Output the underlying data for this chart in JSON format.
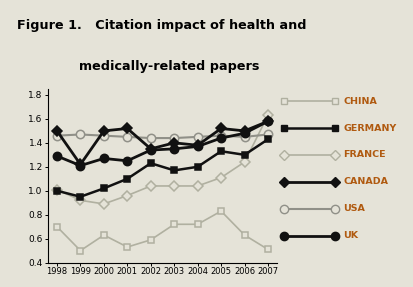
{
  "years": [
    1998,
    1999,
    2000,
    2001,
    2002,
    2003,
    2004,
    2005,
    2006,
    2007
  ],
  "title_line1": "Figure 1.   Citation impact of health and",
  "title_line2": "medically-related papers",
  "title_bg_color": "#7fb86a",
  "plot_bg_color": "#e5e3d8",
  "legend_text_color": "#b05a10",
  "series": {
    "CHINA": {
      "values": [
        0.7,
        0.5,
        0.63,
        0.53,
        0.59,
        0.72,
        0.72,
        0.83,
        0.63,
        0.51
      ],
      "color": "#b0b0a0",
      "marker": "s",
      "linewidth": 1.2,
      "markersize": 5,
      "zorder": 2,
      "open_marker": true
    },
    "GERMANY": {
      "values": [
        1.0,
        0.95,
        1.02,
        1.1,
        1.23,
        1.17,
        1.2,
        1.33,
        1.3,
        1.43
      ],
      "color": "#111111",
      "marker": "s",
      "linewidth": 1.8,
      "markersize": 5,
      "zorder": 4,
      "open_marker": false
    },
    "FRANCE": {
      "values": [
        1.01,
        0.92,
        0.89,
        0.96,
        1.04,
        1.04,
        1.04,
        1.11,
        1.24,
        1.63
      ],
      "color": "#b0b0a0",
      "marker": "D",
      "linewidth": 1.2,
      "markersize": 5,
      "zorder": 3,
      "open_marker": true
    },
    "CANADA": {
      "values": [
        1.5,
        1.22,
        1.5,
        1.52,
        1.35,
        1.4,
        1.38,
        1.52,
        1.5,
        1.58
      ],
      "color": "#111111",
      "marker": "D",
      "linewidth": 2.0,
      "markersize": 5,
      "zorder": 5,
      "open_marker": false
    },
    "USA": {
      "values": [
        1.46,
        1.47,
        1.46,
        1.45,
        1.44,
        1.44,
        1.45,
        1.46,
        1.45,
        1.47
      ],
      "color": "#909088",
      "marker": "o",
      "linewidth": 1.5,
      "markersize": 6,
      "zorder": 3,
      "open_marker": true
    },
    "UK": {
      "values": [
        1.29,
        1.21,
        1.27,
        1.25,
        1.34,
        1.35,
        1.37,
        1.44,
        1.48,
        1.58
      ],
      "color": "#111111",
      "marker": "o",
      "linewidth": 2.0,
      "markersize": 6,
      "zorder": 5,
      "open_marker": false
    }
  },
  "ylim": [
    0.4,
    1.85
  ],
  "yticks": [
    0.4,
    0.6,
    0.8,
    1.0,
    1.2,
    1.4,
    1.6,
    1.8
  ],
  "legend_order": [
    "CHINA",
    "GERMANY",
    "FRANCE",
    "CANADA",
    "USA",
    "UK"
  ]
}
